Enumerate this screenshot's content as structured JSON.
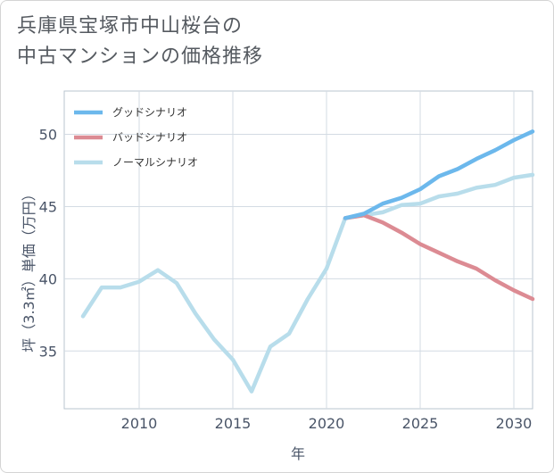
{
  "title_lines": [
    "兵庫県宝塚市中山桜台の",
    "中古マンションの価格推移"
  ],
  "chart_data": {
    "type": "line",
    "xlabel": "年",
    "ylabel": "坪（3.3㎡）単価（万円）",
    "xlim": [
      2006,
      2031
    ],
    "ylim": [
      31,
      53
    ],
    "xticks": [
      2010,
      2015,
      2020,
      2025,
      2030
    ],
    "yticks": [
      35,
      40,
      45,
      50
    ],
    "grid": true,
    "legend_position": "top-left",
    "series": [
      {
        "name": "グッドシナリオ",
        "color": "#6cb8ec",
        "x": [
          2021,
          2022,
          2023,
          2024,
          2025,
          2026,
          2027,
          2028,
          2029,
          2030,
          2031
        ],
        "values": [
          44.2,
          44.5,
          45.2,
          45.6,
          46.2,
          47.1,
          47.6,
          48.3,
          48.9,
          49.6,
          50.2
        ]
      },
      {
        "name": "バッドシナリオ",
        "color": "#dc8b93",
        "x": [
          2021,
          2022,
          2023,
          2024,
          2025,
          2026,
          2027,
          2028,
          2029,
          2030,
          2031
        ],
        "values": [
          44.2,
          44.4,
          43.9,
          43.2,
          42.4,
          41.8,
          41.2,
          40.7,
          39.9,
          39.2,
          38.6
        ]
      },
      {
        "name": "ノーマルシナリオ",
        "color": "#b8ddeb",
        "x": [
          2007,
          2008,
          2009,
          2010,
          2011,
          2012,
          2013,
          2014,
          2015,
          2016,
          2017,
          2018,
          2019,
          2020,
          2021,
          2022,
          2023,
          2024,
          2025,
          2026,
          2027,
          2028,
          2029,
          2030,
          2031
        ],
        "values": [
          37.4,
          39.4,
          39.4,
          39.8,
          40.6,
          39.7,
          37.6,
          35.8,
          34.4,
          32.2,
          35.3,
          36.2,
          38.6,
          40.7,
          44.2,
          44.4,
          44.6,
          45.1,
          45.2,
          45.7,
          45.9,
          46.3,
          46.5,
          47.0,
          47.2
        ]
      }
    ]
  }
}
